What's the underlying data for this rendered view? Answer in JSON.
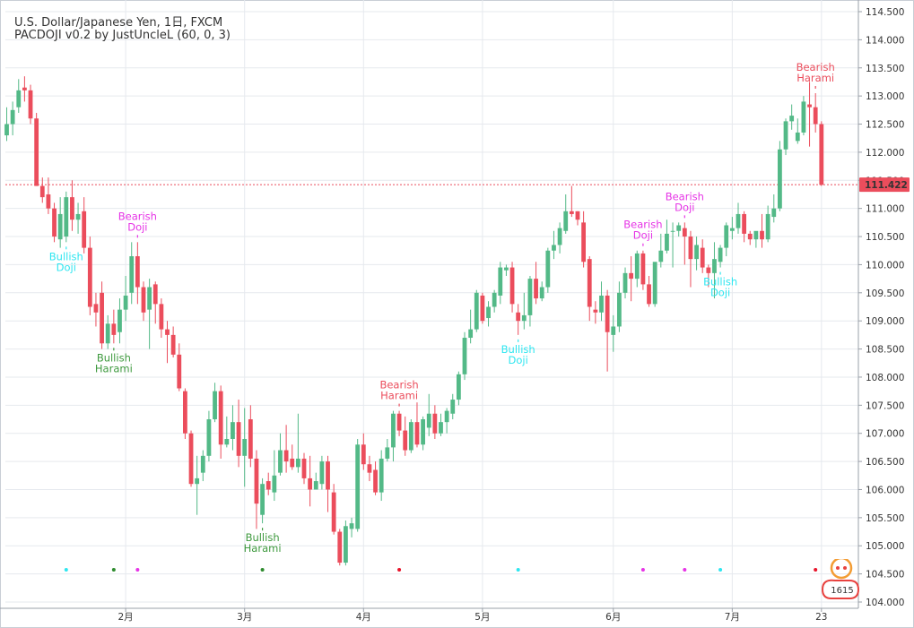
{
  "header": {
    "symbol_line": "U.S. Dollar/Japanese Yen, 1日, FXCM",
    "indicator_line": "PACDOJI v0.2 by JustUncleL (60, 0, 3)"
  },
  "colors": {
    "bull": "#53b987",
    "bear": "#eb4d5c",
    "grid": "#e6e9ee",
    "last_price_line": "#eb4d5c",
    "cyan": "#2ee6f0",
    "magenta": "#e633e6",
    "green_dark": "#2e8b2e",
    "red_dot": "#e8132a",
    "bullish_doji_text": "#2ee6f0",
    "bearish_doji_text": "#e633e6",
    "bullish_harami_text": "#3f9a3f",
    "bearish_harami_text": "#eb4d5c"
  },
  "chart_data": {
    "type": "candlestick",
    "y_axis": {
      "range": [
        104.0,
        114.6
      ],
      "ticks": [
        "114.500",
        "114.000",
        "113.500",
        "113.000",
        "112.500",
        "112.000",
        "111.500",
        "111.000",
        "110.500",
        "110.000",
        "109.500",
        "109.000",
        "108.500",
        "108.000",
        "107.500",
        "107.000",
        "106.500",
        "106.000",
        "105.500",
        "105.000",
        "104.500",
        "104.000"
      ]
    },
    "x_axis": {
      "labels": [
        {
          "text": "2月",
          "bar": 20
        },
        {
          "text": "3月",
          "bar": 40
        },
        {
          "text": "4月",
          "bar": 60
        },
        {
          "text": "5月",
          "bar": 80
        },
        {
          "text": "6月",
          "bar": 102
        },
        {
          "text": "7月",
          "bar": 122
        },
        {
          "text": "23",
          "bar": 137
        }
      ]
    },
    "last_price": {
      "value": 111.422,
      "label": "111.422"
    },
    "candles": [
      {
        "o": 112.3,
        "h": 112.8,
        "l": 112.2,
        "c": 112.5
      },
      {
        "o": 112.5,
        "h": 112.9,
        "l": 112.3,
        "c": 112.75
      },
      {
        "o": 112.8,
        "h": 113.3,
        "l": 112.7,
        "c": 113.1
      },
      {
        "o": 113.15,
        "h": 113.35,
        "l": 112.9,
        "c": 113.1
      },
      {
        "o": 113.1,
        "h": 113.2,
        "l": 112.5,
        "c": 112.6
      },
      {
        "o": 112.6,
        "h": 112.7,
        "l": 111.4,
        "c": 111.4
      },
      {
        "o": 111.4,
        "h": 111.55,
        "l": 111.1,
        "c": 111.2
      },
      {
        "o": 111.25,
        "h": 111.55,
        "l": 110.9,
        "c": 111.0
      },
      {
        "o": 111.0,
        "h": 111.1,
        "l": 110.4,
        "c": 110.5
      },
      {
        "o": 110.45,
        "h": 111.2,
        "l": 110.3,
        "c": 110.9
      },
      {
        "o": 110.5,
        "h": 111.3,
        "l": 110.4,
        "c": 111.2
      },
      {
        "o": 111.2,
        "h": 111.5,
        "l": 110.6,
        "c": 110.8
      },
      {
        "o": 110.8,
        "h": 111.1,
        "l": 110.55,
        "c": 110.9
      },
      {
        "o": 110.95,
        "h": 111.2,
        "l": 110.2,
        "c": 110.3
      },
      {
        "o": 110.3,
        "h": 110.5,
        "l": 109.1,
        "c": 109.25
      },
      {
        "o": 109.3,
        "h": 109.5,
        "l": 108.9,
        "c": 109.15
      },
      {
        "o": 109.5,
        "h": 109.7,
        "l": 108.5,
        "c": 108.6
      },
      {
        "o": 108.6,
        "h": 109.1,
        "l": 108.5,
        "c": 108.95
      },
      {
        "o": 108.95,
        "h": 109.2,
        "l": 108.6,
        "c": 108.75
      },
      {
        "o": 108.8,
        "h": 109.4,
        "l": 108.6,
        "c": 109.2
      },
      {
        "o": 109.2,
        "h": 109.8,
        "l": 109.0,
        "c": 109.45
      },
      {
        "o": 109.5,
        "h": 110.4,
        "l": 109.3,
        "c": 110.15
      },
      {
        "o": 110.15,
        "h": 110.4,
        "l": 109.3,
        "c": 109.6
      },
      {
        "o": 109.6,
        "h": 109.7,
        "l": 109.0,
        "c": 109.15
      },
      {
        "o": 109.2,
        "h": 109.75,
        "l": 108.5,
        "c": 109.6
      },
      {
        "o": 109.65,
        "h": 109.7,
        "l": 108.95,
        "c": 109.3
      },
      {
        "o": 109.3,
        "h": 109.4,
        "l": 108.7,
        "c": 108.85
      },
      {
        "o": 108.85,
        "h": 109.0,
        "l": 108.25,
        "c": 108.75
      },
      {
        "o": 108.75,
        "h": 108.9,
        "l": 108.35,
        "c": 108.4
      },
      {
        "o": 108.4,
        "h": 108.6,
        "l": 107.75,
        "c": 107.8
      },
      {
        "o": 107.75,
        "h": 107.8,
        "l": 106.9,
        "c": 107.0
      },
      {
        "o": 107.0,
        "h": 107.05,
        "l": 106.05,
        "c": 106.1
      },
      {
        "o": 106.1,
        "h": 106.6,
        "l": 105.55,
        "c": 106.2
      },
      {
        "o": 106.3,
        "h": 106.7,
        "l": 106.15,
        "c": 106.6
      },
      {
        "o": 106.6,
        "h": 107.4,
        "l": 106.5,
        "c": 107.25
      },
      {
        "o": 107.25,
        "h": 107.9,
        "l": 107.2,
        "c": 107.75
      },
      {
        "o": 107.75,
        "h": 107.85,
        "l": 106.55,
        "c": 106.8
      },
      {
        "o": 106.8,
        "h": 107.3,
        "l": 106.75,
        "c": 106.9
      },
      {
        "o": 106.9,
        "h": 107.5,
        "l": 106.7,
        "c": 107.2
      },
      {
        "o": 107.2,
        "h": 107.6,
        "l": 106.4,
        "c": 106.6
      },
      {
        "o": 106.6,
        "h": 107.45,
        "l": 106.05,
        "c": 106.9
      },
      {
        "o": 107.25,
        "h": 107.5,
        "l": 106.4,
        "c": 106.55
      },
      {
        "o": 106.55,
        "h": 106.7,
        "l": 105.3,
        "c": 105.75
      },
      {
        "o": 105.55,
        "h": 106.2,
        "l": 105.4,
        "c": 106.1
      },
      {
        "o": 106.15,
        "h": 106.3,
        "l": 105.9,
        "c": 106.0
      },
      {
        "o": 105.95,
        "h": 106.7,
        "l": 105.8,
        "c": 106.25
      },
      {
        "o": 106.3,
        "h": 107.0,
        "l": 106.25,
        "c": 106.7
      },
      {
        "o": 106.7,
        "h": 107.15,
        "l": 106.3,
        "c": 106.5
      },
      {
        "o": 106.55,
        "h": 106.8,
        "l": 106.35,
        "c": 106.4
      },
      {
        "o": 106.4,
        "h": 107.35,
        "l": 106.3,
        "c": 106.55
      },
      {
        "o": 106.55,
        "h": 106.65,
        "l": 106.1,
        "c": 106.2
      },
      {
        "o": 106.2,
        "h": 106.6,
        "l": 105.7,
        "c": 106.0
      },
      {
        "o": 106.0,
        "h": 106.3,
        "l": 106.0,
        "c": 106.15
      },
      {
        "o": 106.1,
        "h": 106.6,
        "l": 106.0,
        "c": 106.5
      },
      {
        "o": 106.5,
        "h": 106.6,
        "l": 105.6,
        "c": 106.0
      },
      {
        "o": 105.95,
        "h": 106.1,
        "l": 105.2,
        "c": 105.25
      },
      {
        "o": 105.25,
        "h": 105.3,
        "l": 104.65,
        "c": 104.7
      },
      {
        "o": 104.7,
        "h": 105.45,
        "l": 104.65,
        "c": 105.35
      },
      {
        "o": 105.3,
        "h": 105.5,
        "l": 105.15,
        "c": 105.4
      },
      {
        "o": 105.3,
        "h": 106.9,
        "l": 105.25,
        "c": 106.8
      },
      {
        "o": 106.8,
        "h": 107.0,
        "l": 106.35,
        "c": 106.45
      },
      {
        "o": 106.45,
        "h": 106.6,
        "l": 106.15,
        "c": 106.3
      },
      {
        "o": 106.35,
        "h": 106.5,
        "l": 105.9,
        "c": 105.95
      },
      {
        "o": 105.95,
        "h": 106.7,
        "l": 105.8,
        "c": 106.55
      },
      {
        "o": 106.55,
        "h": 106.9,
        "l": 106.5,
        "c": 106.75
      },
      {
        "o": 106.75,
        "h": 107.4,
        "l": 106.5,
        "c": 107.35
      },
      {
        "o": 107.35,
        "h": 107.4,
        "l": 106.95,
        "c": 107.05
      },
      {
        "o": 107.05,
        "h": 107.3,
        "l": 106.6,
        "c": 106.7
      },
      {
        "o": 106.7,
        "h": 107.25,
        "l": 106.65,
        "c": 107.2
      },
      {
        "o": 107.2,
        "h": 107.55,
        "l": 106.75,
        "c": 106.8
      },
      {
        "o": 106.8,
        "h": 107.3,
        "l": 106.7,
        "c": 107.25
      },
      {
        "o": 107.1,
        "h": 107.7,
        "l": 106.95,
        "c": 107.35
      },
      {
        "o": 107.35,
        "h": 107.5,
        "l": 106.9,
        "c": 107.0
      },
      {
        "o": 107.0,
        "h": 107.35,
        "l": 106.95,
        "c": 107.2
      },
      {
        "o": 107.2,
        "h": 107.45,
        "l": 107.0,
        "c": 107.4
      },
      {
        "o": 107.35,
        "h": 107.7,
        "l": 107.25,
        "c": 107.6
      },
      {
        "o": 107.6,
        "h": 108.1,
        "l": 107.5,
        "c": 108.05
      },
      {
        "o": 108.05,
        "h": 108.8,
        "l": 107.95,
        "c": 108.7
      },
      {
        "o": 108.7,
        "h": 109.2,
        "l": 108.6,
        "c": 108.85
      },
      {
        "o": 108.85,
        "h": 109.55,
        "l": 108.8,
        "c": 109.5
      },
      {
        "o": 109.45,
        "h": 109.5,
        "l": 108.95,
        "c": 109.0
      },
      {
        "o": 109.05,
        "h": 109.35,
        "l": 108.9,
        "c": 109.25
      },
      {
        "o": 109.25,
        "h": 109.55,
        "l": 109.15,
        "c": 109.5
      },
      {
        "o": 109.45,
        "h": 110.05,
        "l": 109.3,
        "c": 109.95
      },
      {
        "o": 109.9,
        "h": 110.0,
        "l": 109.8,
        "c": 109.95
      },
      {
        "o": 109.95,
        "h": 110.05,
        "l": 109.15,
        "c": 109.3
      },
      {
        "o": 109.15,
        "h": 109.3,
        "l": 108.75,
        "c": 109.0
      },
      {
        "o": 109.0,
        "h": 109.5,
        "l": 108.85,
        "c": 109.1
      },
      {
        "o": 109.1,
        "h": 109.8,
        "l": 108.9,
        "c": 109.75
      },
      {
        "o": 109.75,
        "h": 110.05,
        "l": 109.3,
        "c": 109.4
      },
      {
        "o": 109.4,
        "h": 109.7,
        "l": 109.35,
        "c": 109.6
      },
      {
        "o": 109.6,
        "h": 110.3,
        "l": 109.5,
        "c": 110.25
      },
      {
        "o": 110.25,
        "h": 110.6,
        "l": 110.1,
        "c": 110.35
      },
      {
        "o": 110.35,
        "h": 110.75,
        "l": 110.2,
        "c": 110.65
      },
      {
        "o": 110.6,
        "h": 111.25,
        "l": 110.55,
        "c": 110.95
      },
      {
        "o": 110.95,
        "h": 111.4,
        "l": 110.85,
        "c": 110.9
      },
      {
        "o": 110.95,
        "h": 110.95,
        "l": 110.7,
        "c": 110.8
      },
      {
        "o": 110.75,
        "h": 110.95,
        "l": 109.95,
        "c": 110.05
      },
      {
        "o": 110.1,
        "h": 110.15,
        "l": 109.0,
        "c": 109.25
      },
      {
        "o": 109.2,
        "h": 109.35,
        "l": 108.95,
        "c": 109.15
      },
      {
        "o": 109.15,
        "h": 109.7,
        "l": 109.0,
        "c": 109.45
      },
      {
        "o": 109.45,
        "h": 109.55,
        "l": 108.1,
        "c": 108.8
      },
      {
        "o": 108.75,
        "h": 109.1,
        "l": 108.45,
        "c": 108.9
      },
      {
        "o": 108.9,
        "h": 109.7,
        "l": 108.8,
        "c": 109.5
      },
      {
        "o": 109.5,
        "h": 109.95,
        "l": 109.4,
        "c": 109.85
      },
      {
        "o": 109.85,
        "h": 110.15,
        "l": 109.35,
        "c": 109.75
      },
      {
        "o": 109.75,
        "h": 110.25,
        "l": 109.6,
        "c": 110.2
      },
      {
        "o": 110.2,
        "h": 110.25,
        "l": 109.55,
        "c": 109.65
      },
      {
        "o": 109.65,
        "h": 109.8,
        "l": 109.25,
        "c": 109.3
      },
      {
        "o": 109.3,
        "h": 110.0,
        "l": 109.25,
        "c": 110.05
      },
      {
        "o": 110.05,
        "h": 110.55,
        "l": 109.95,
        "c": 110.25
      },
      {
        "o": 110.25,
        "h": 110.8,
        "l": 110.2,
        "c": 110.55
      },
      {
        "o": 110.6,
        "h": 110.75,
        "l": 109.95,
        "c": 110.6
      },
      {
        "o": 110.6,
        "h": 110.75,
        "l": 110.5,
        "c": 110.7
      },
      {
        "o": 110.65,
        "h": 110.75,
        "l": 110.0,
        "c": 110.5
      },
      {
        "o": 110.5,
        "h": 110.6,
        "l": 109.6,
        "c": 110.1
      },
      {
        "o": 110.1,
        "h": 110.5,
        "l": 109.9,
        "c": 110.35
      },
      {
        "o": 110.3,
        "h": 110.45,
        "l": 109.85,
        "c": 109.95
      },
      {
        "o": 109.95,
        "h": 110.0,
        "l": 109.6,
        "c": 109.85
      },
      {
        "o": 109.85,
        "h": 110.4,
        "l": 109.4,
        "c": 110.1
      },
      {
        "o": 110.05,
        "h": 110.35,
        "l": 109.95,
        "c": 110.3
      },
      {
        "o": 110.3,
        "h": 110.75,
        "l": 110.15,
        "c": 110.7
      },
      {
        "o": 110.6,
        "h": 110.85,
        "l": 110.45,
        "c": 110.65
      },
      {
        "o": 110.65,
        "h": 111.1,
        "l": 110.55,
        "c": 110.9
      },
      {
        "o": 110.9,
        "h": 110.95,
        "l": 110.4,
        "c": 110.55
      },
      {
        "o": 110.55,
        "h": 110.6,
        "l": 110.35,
        "c": 110.45
      },
      {
        "o": 110.45,
        "h": 110.55,
        "l": 110.3,
        "c": 110.6
      },
      {
        "o": 110.6,
        "h": 110.9,
        "l": 110.3,
        "c": 110.45
      },
      {
        "o": 110.45,
        "h": 111.05,
        "l": 110.4,
        "c": 110.9
      },
      {
        "o": 110.85,
        "h": 111.25,
        "l": 110.75,
        "c": 111.0
      },
      {
        "o": 111.0,
        "h": 112.2,
        "l": 110.95,
        "c": 112.05
      },
      {
        "o": 112.05,
        "h": 112.6,
        "l": 111.95,
        "c": 112.55
      },
      {
        "o": 112.55,
        "h": 112.85,
        "l": 112.4,
        "c": 112.65
      },
      {
        "o": 112.2,
        "h": 112.6,
        "l": 112.15,
        "c": 112.35
      },
      {
        "o": 112.35,
        "h": 113.0,
        "l": 112.3,
        "c": 112.9
      },
      {
        "o": 112.85,
        "h": 113.25,
        "l": 112.1,
        "c": 112.8
      },
      {
        "o": 112.8,
        "h": 113.05,
        "l": 112.35,
        "c": 112.5
      },
      {
        "o": 112.5,
        "h": 112.55,
        "l": 111.4,
        "c": 111.42
      }
    ],
    "patterns": [
      {
        "bar": 10,
        "kind": "Bullish Doji",
        "position": "below",
        "marker": "cyan",
        "text": [
          "Bullish",
          "Doji"
        ]
      },
      {
        "bar": 18,
        "kind": "Bullish Harami",
        "position": "below",
        "marker": "green_dark",
        "text": [
          "Bullish",
          "Harami"
        ]
      },
      {
        "bar": 22,
        "kind": "Bearish Doji",
        "position": "above",
        "marker": "magenta",
        "text": [
          "Bearish",
          "Doji"
        ]
      },
      {
        "bar": 43,
        "kind": "Bullish Harami",
        "position": "below",
        "marker": "green_dark",
        "text": [
          "Bullish",
          "Harami"
        ]
      },
      {
        "bar": 66,
        "kind": "Bearish Harami",
        "position": "above",
        "marker": "red_dot",
        "text": [
          "Bearish",
          "Harami"
        ]
      },
      {
        "bar": 86,
        "kind": "Bullish Doji",
        "position": "below",
        "marker": "cyan",
        "text": [
          "Bullish",
          "Doji"
        ]
      },
      {
        "bar": 107,
        "kind": "Bearish Doji",
        "position": "above",
        "marker": "magenta",
        "text": [
          "Bearish",
          "Doji"
        ]
      },
      {
        "bar": 114,
        "kind": "Bearish Doji",
        "position": "above",
        "marker": "magenta",
        "text": [
          "Bearish",
          "Doji"
        ]
      },
      {
        "bar": 120,
        "kind": "Bullish Doji",
        "position": "below",
        "marker": "cyan",
        "text": [
          "Bullish",
          "Doji"
        ]
      },
      {
        "bar": 136,
        "kind": "Bearish Harami",
        "position": "above",
        "marker": "red_dot",
        "text": [
          "Bearish",
          "Harami"
        ]
      }
    ]
  },
  "logo": {
    "text": "1615"
  }
}
